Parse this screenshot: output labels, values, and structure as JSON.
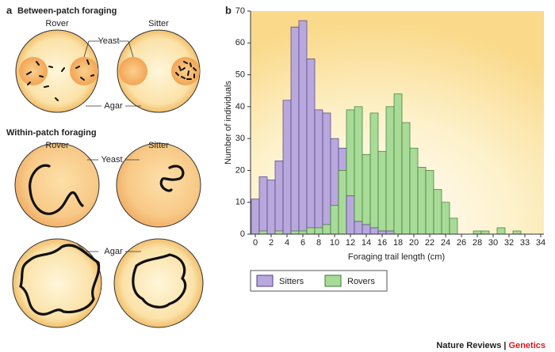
{
  "panel_a": {
    "label": "a",
    "top_title": "Between-patch foraging",
    "top_rover": "Rover",
    "top_sitter": "Sitter",
    "top_yeast": "Yeast",
    "top_agar": "Agar",
    "bottom_title": "Within-patch foraging",
    "bottom_rover": "Rover",
    "bottom_sitter": "Sitter",
    "bottom_yeast": "Yeast",
    "bottom_agar": "Agar"
  },
  "chart_data": {
    "type": "bar",
    "panel_label": "b",
    "x_label": "Foraging trail length (cm)",
    "y_label": "Number of individuals",
    "categories": [
      "0",
      null,
      "2",
      null,
      "4",
      null,
      "6",
      null,
      "8",
      null,
      "10",
      null,
      "12",
      null,
      "14",
      null,
      "16",
      null,
      "18",
      null,
      "20",
      null,
      "22",
      null,
      "24",
      null,
      "26",
      null,
      "28",
      null,
      "30",
      null,
      "32",
      null,
      "33",
      null,
      "34"
    ],
    "series": [
      {
        "name": "Sitters",
        "color": "#b9a8dc",
        "edge": "#4e3f86",
        "values": [
          11,
          18,
          17,
          23,
          42,
          65,
          67,
          55,
          39,
          38,
          30,
          27,
          12,
          4,
          3,
          2,
          1,
          1,
          0,
          0,
          0,
          0,
          0,
          0,
          0,
          0,
          0,
          0,
          0,
          0,
          0,
          0,
          0,
          0,
          null,
          null,
          null
        ]
      },
      {
        "name": "Rovers",
        "color": "#a8da98",
        "edge": "#3a7a32",
        "values": [
          0,
          1,
          0,
          1,
          0,
          1,
          1,
          2,
          2,
          3,
          9,
          20,
          39,
          40,
          25,
          38,
          26,
          40,
          44,
          35,
          27,
          21,
          20,
          14,
          10,
          5,
          0,
          0,
          1,
          1,
          0,
          2,
          0,
          1,
          null,
          null,
          null
        ]
      }
    ],
    "ylim": [
      0,
      70
    ],
    "yticks": [
      0,
      10,
      20,
      30,
      40,
      50,
      60,
      70
    ]
  },
  "footer": {
    "journal": "Nature Reviews",
    "divider": "|",
    "section": "Genetics"
  }
}
